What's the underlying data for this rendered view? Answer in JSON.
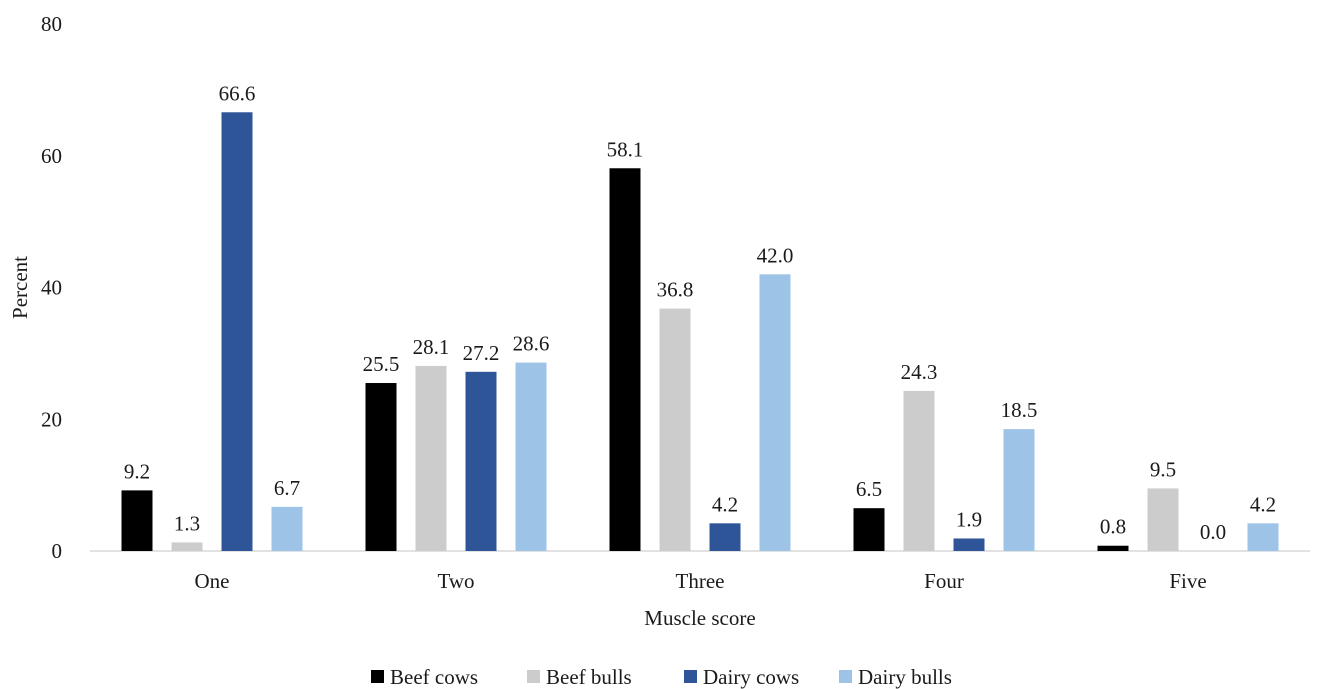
{
  "chart_data": {
    "type": "bar",
    "xlabel": "Muscle score",
    "ylabel": "Percent",
    "ylim": [
      0,
      80
    ],
    "yticks": [
      0,
      20,
      40,
      60,
      80
    ],
    "grid": false,
    "legend_position": "bottom",
    "categories": [
      "One",
      "Two",
      "Three",
      "Four",
      "Five"
    ],
    "series": [
      {
        "name": "Beef cows",
        "color": "#000000",
        "values": [
          9.2,
          25.5,
          58.1,
          6.5,
          0.8
        ],
        "labels": [
          "9.2",
          "25.5",
          "58.1",
          "6.5",
          "0.8"
        ]
      },
      {
        "name": "Beef bulls",
        "color": "#cccccc",
        "values": [
          1.3,
          28.1,
          36.8,
          24.3,
          9.5
        ],
        "labels": [
          "1.3",
          "28.1",
          "36.8",
          "24.3",
          "9.5"
        ]
      },
      {
        "name": "Dairy cows",
        "color": "#2e5597",
        "values": [
          66.6,
          27.2,
          4.2,
          1.9,
          0.0
        ],
        "labels": [
          "66.6",
          "27.2",
          "4.2",
          "1.9",
          "0.0"
        ]
      },
      {
        "name": "Dairy bulls",
        "color": "#9dc3e6",
        "values": [
          6.7,
          28.6,
          42.0,
          18.5,
          4.2
        ],
        "labels": [
          "6.7",
          "28.6",
          "42.0",
          "18.5",
          "4.2"
        ]
      }
    ]
  }
}
